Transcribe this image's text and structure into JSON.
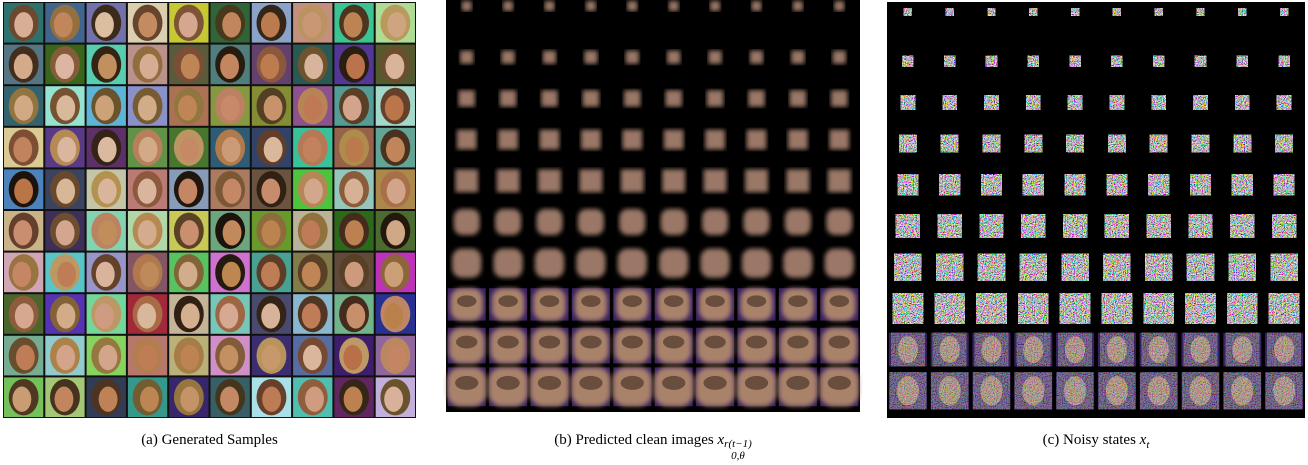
{
  "captions": {
    "a": "(a) Generated Samples",
    "b": {
      "text": "(b) Predicted clean images ",
      "var": "x",
      "sub": "0,θ",
      "sup": "r(t−1)"
    },
    "c": {
      "text": "(c) Noisy states ",
      "var": "x",
      "sub": "t"
    }
  }
}
